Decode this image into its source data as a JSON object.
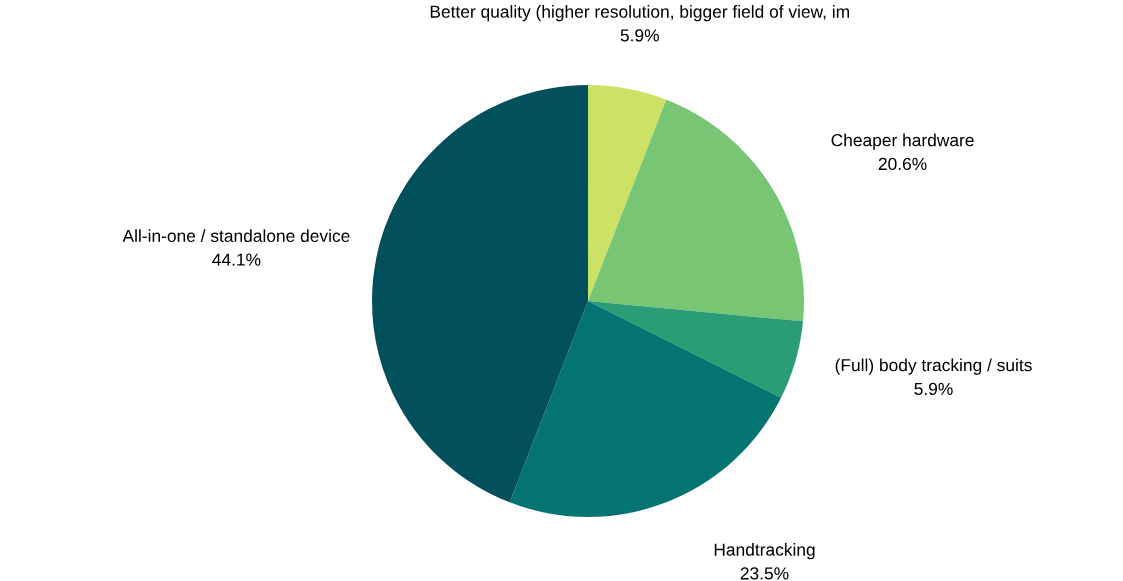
{
  "chart_data": {
    "type": "pie",
    "categories": [
      "Better quality (higher resolution, bigger field of view, im",
      "Cheaper hardware",
      "(Full) body tracking / suits",
      "Handtracking",
      "All-in-one / standalone device"
    ],
    "values": [
      5.9,
      20.6,
      5.9,
      23.5,
      44.1
    ],
    "colors": [
      "#cce266",
      "#78c674",
      "#2a9d78",
      "#037471",
      "#02505c"
    ],
    "value_labels": [
      "5.9%",
      "20.6%",
      "5.9%",
      "23.5%",
      "44.1%"
    ],
    "legend": false
  }
}
